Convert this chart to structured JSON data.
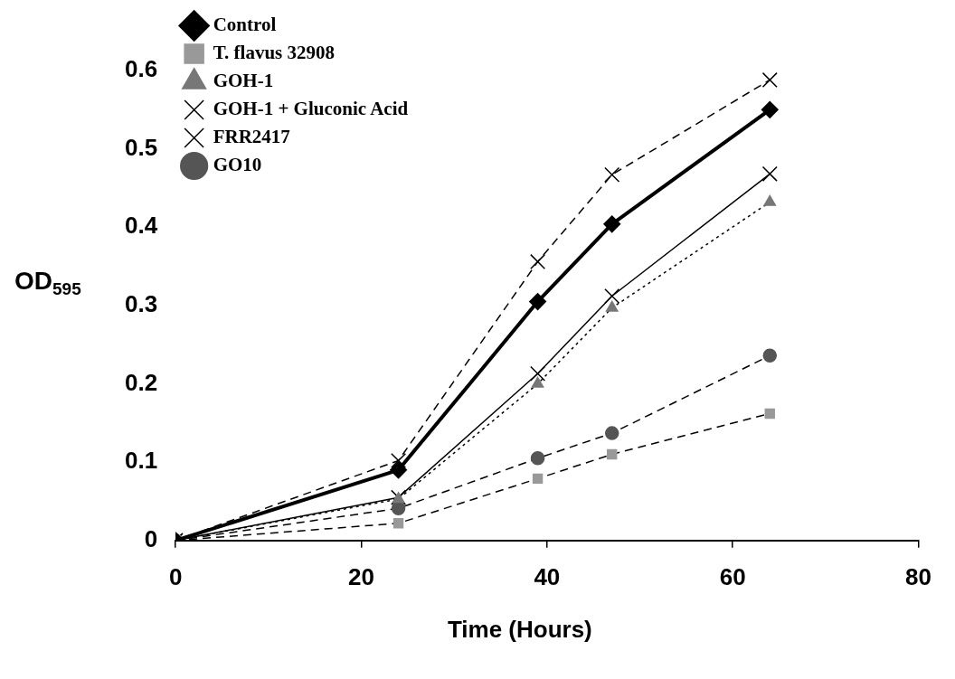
{
  "chart_data": {
    "type": "line",
    "xlabel": "Time (Hours)",
    "ylabel": "OD$_{595}$",
    "xlim": [
      0,
      80
    ],
    "xticks": [
      0,
      20,
      40,
      60,
      80
    ],
    "ylim": [
      0,
      0.6
    ],
    "yticks": [
      0,
      0.1,
      0.2,
      0.3,
      0.4,
      0.5,
      0.6
    ],
    "x": [
      0,
      24,
      39,
      47,
      64
    ],
    "grid": false,
    "legend": "top left",
    "series": [
      {
        "name": "Control",
        "color": "#000000",
        "marker": "diamond",
        "line_style": "solid",
        "values": [
          0,
          0.09,
          0.305,
          0.404,
          0.55
        ]
      },
      {
        "name": "T. flavus 32908",
        "color": "#999999",
        "marker": "square",
        "line_style": "dashed",
        "values": [
          0,
          0.022,
          0.079,
          0.11,
          0.162
        ]
      },
      {
        "name": "GOH-1",
        "color": "#777777",
        "marker": "triangle",
        "line_style": "dotted",
        "values": [
          0,
          0.053,
          0.2,
          0.297,
          0.432
        ]
      },
      {
        "name": "GOH-1 + Gluconic Acid",
        "color": "#000000",
        "marker": "cross",
        "line_style": "solid",
        "values": [
          0,
          0.055,
          0.213,
          0.312,
          0.468
        ]
      },
      {
        "name": "FRR2417",
        "color": "#000000",
        "marker": "cross",
        "line_style": "dashed",
        "values": [
          0,
          0.102,
          0.356,
          0.467,
          0.588
        ]
      },
      {
        "name": "GO10",
        "color": "#555555",
        "marker": "circle",
        "line_style": "dashed",
        "values": [
          0,
          0.041,
          0.105,
          0.137,
          0.236
        ]
      }
    ]
  }
}
